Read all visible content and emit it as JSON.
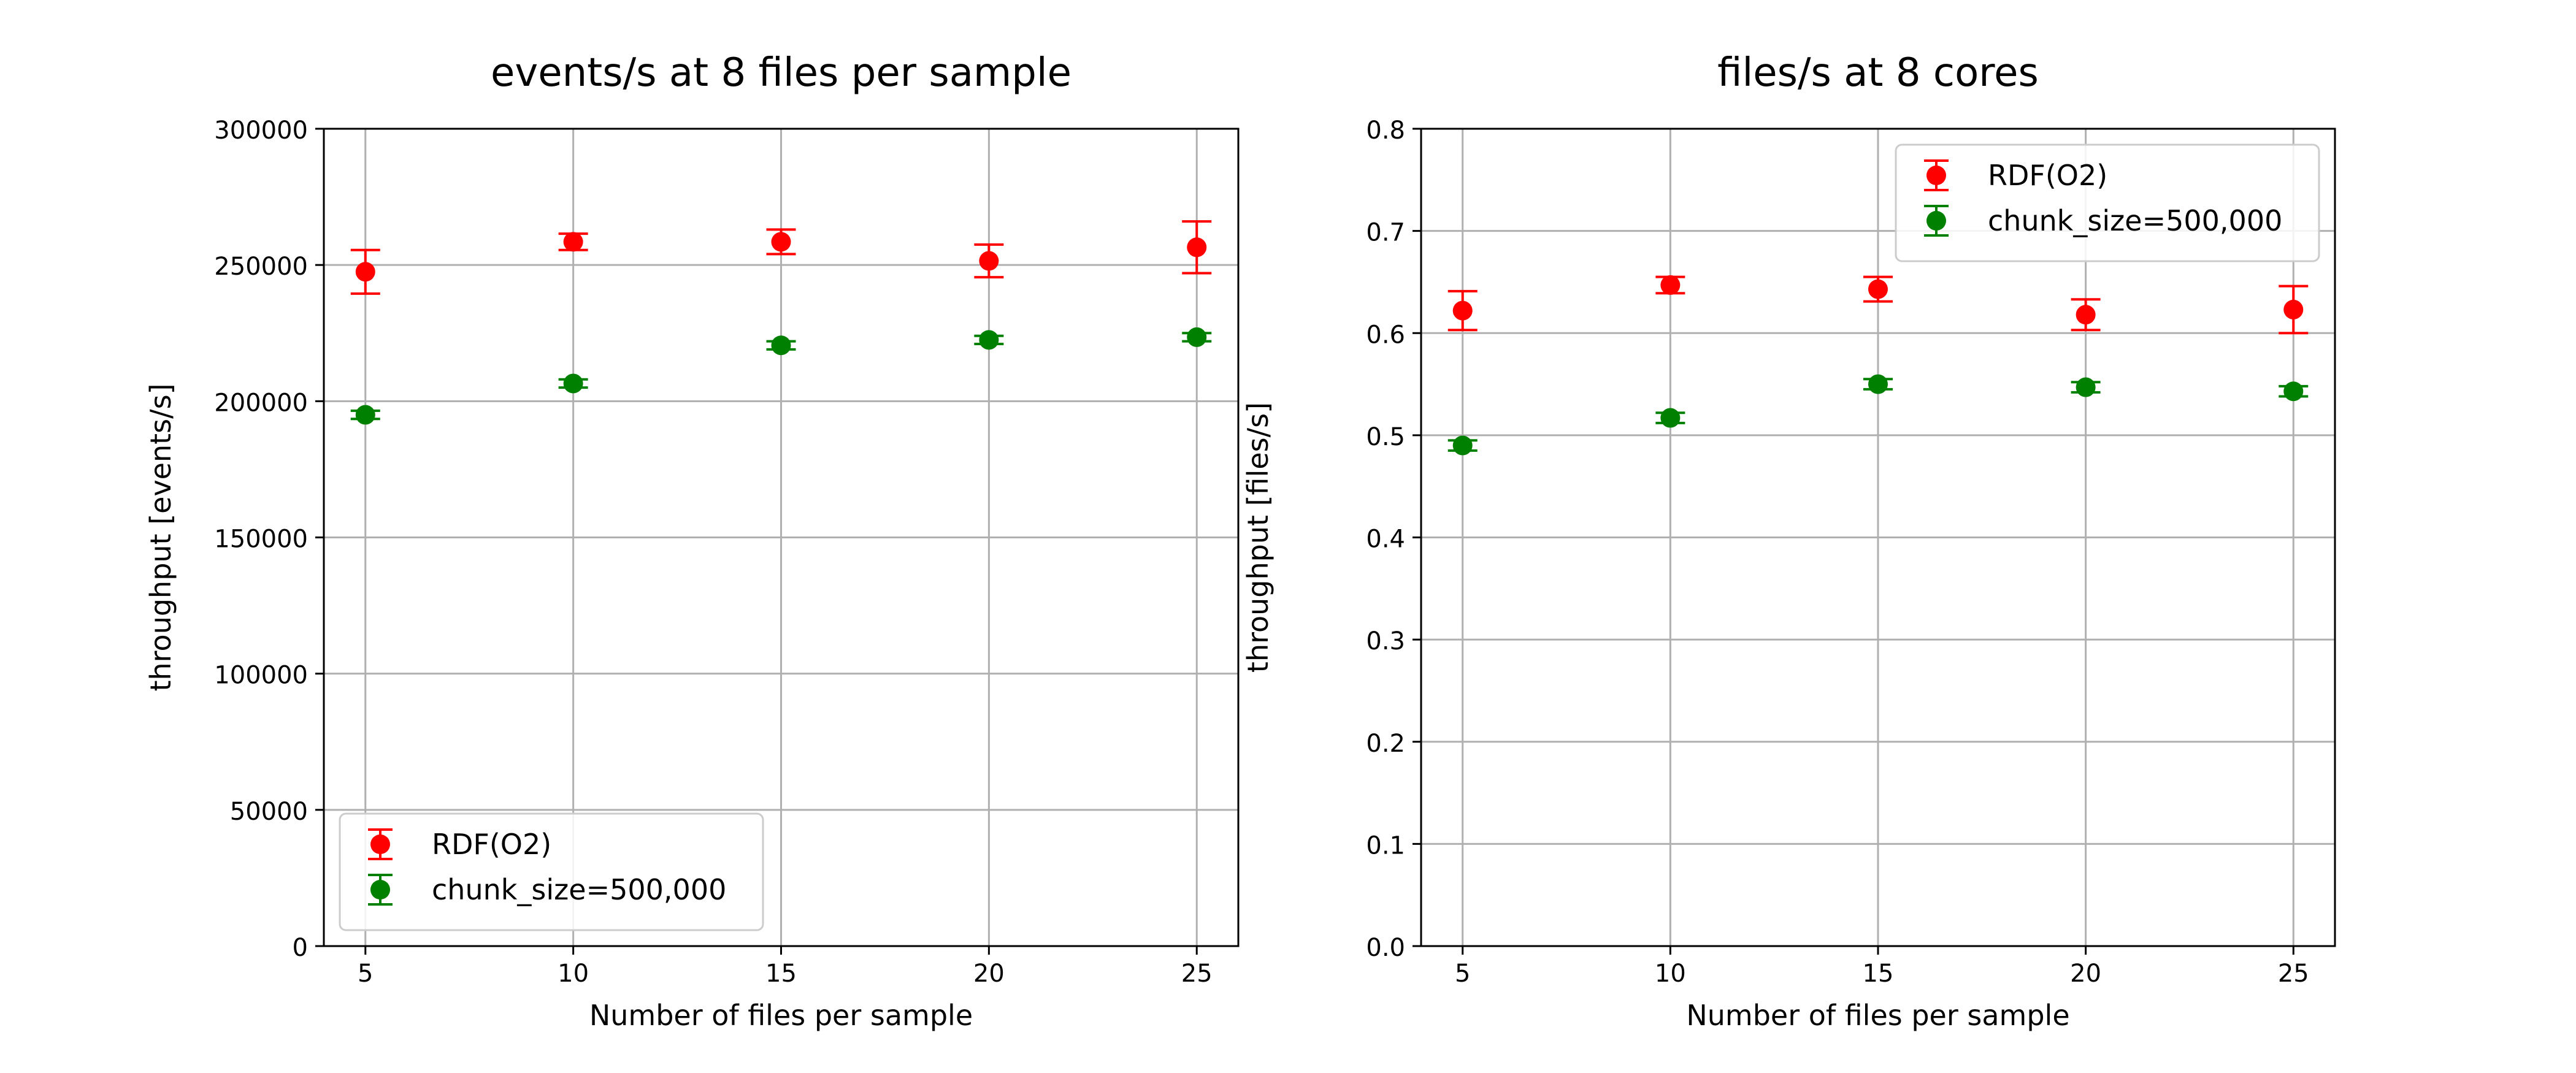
{
  "chart_data": [
    {
      "type": "scatter",
      "title": "events/s at 8 files per sample",
      "xlabel": "Number of files per sample",
      "ylabel": "throughput [events/s]",
      "x": [
        5,
        10,
        15,
        20,
        25
      ],
      "x_ticks": [
        "5",
        "10",
        "15",
        "20",
        "25"
      ],
      "xlim": [
        4,
        26
      ],
      "ylim": [
        0,
        300000
      ],
      "y_ticks": [
        "0",
        "50000",
        "100000",
        "150000",
        "200000",
        "250000",
        "300000"
      ],
      "grid": true,
      "legend_position": "lower-left",
      "series": [
        {
          "name": "RDF(O2)",
          "color": "#ff0000",
          "values": [
            247500,
            258500,
            258500,
            251500,
            256500
          ],
          "errors": [
            8000,
            3000,
            4500,
            6000,
            9500
          ]
        },
        {
          "name": "chunk_size=500,000",
          "color": "#008000",
          "values": [
            195000,
            206500,
            220500,
            222500,
            223500
          ],
          "errors": [
            1500,
            1500,
            1500,
            1500,
            1500
          ]
        }
      ]
    },
    {
      "type": "scatter",
      "title": "files/s at 8 cores",
      "xlabel": "Number of files per sample",
      "ylabel": "throughput [files/s]",
      "x": [
        5,
        10,
        15,
        20,
        25
      ],
      "x_ticks": [
        "5",
        "10",
        "15",
        "20",
        "25"
      ],
      "xlim": [
        4,
        26
      ],
      "ylim": [
        0,
        0.8
      ],
      "y_ticks": [
        "0.0",
        "0.1",
        "0.2",
        "0.3",
        "0.4",
        "0.5",
        "0.6",
        "0.7",
        "0.8"
      ],
      "grid": true,
      "legend_position": "upper-right",
      "series": [
        {
          "name": "RDF(O2)",
          "color": "#ff0000",
          "values": [
            0.622,
            0.647,
            0.643,
            0.618,
            0.623
          ],
          "errors": [
            0.019,
            0.008,
            0.012,
            0.015,
            0.023
          ]
        },
        {
          "name": "chunk_size=500,000",
          "color": "#008000",
          "values": [
            0.49,
            0.517,
            0.55,
            0.547,
            0.543
          ],
          "errors": [
            0.005,
            0.005,
            0.005,
            0.005,
            0.005
          ]
        }
      ]
    }
  ]
}
